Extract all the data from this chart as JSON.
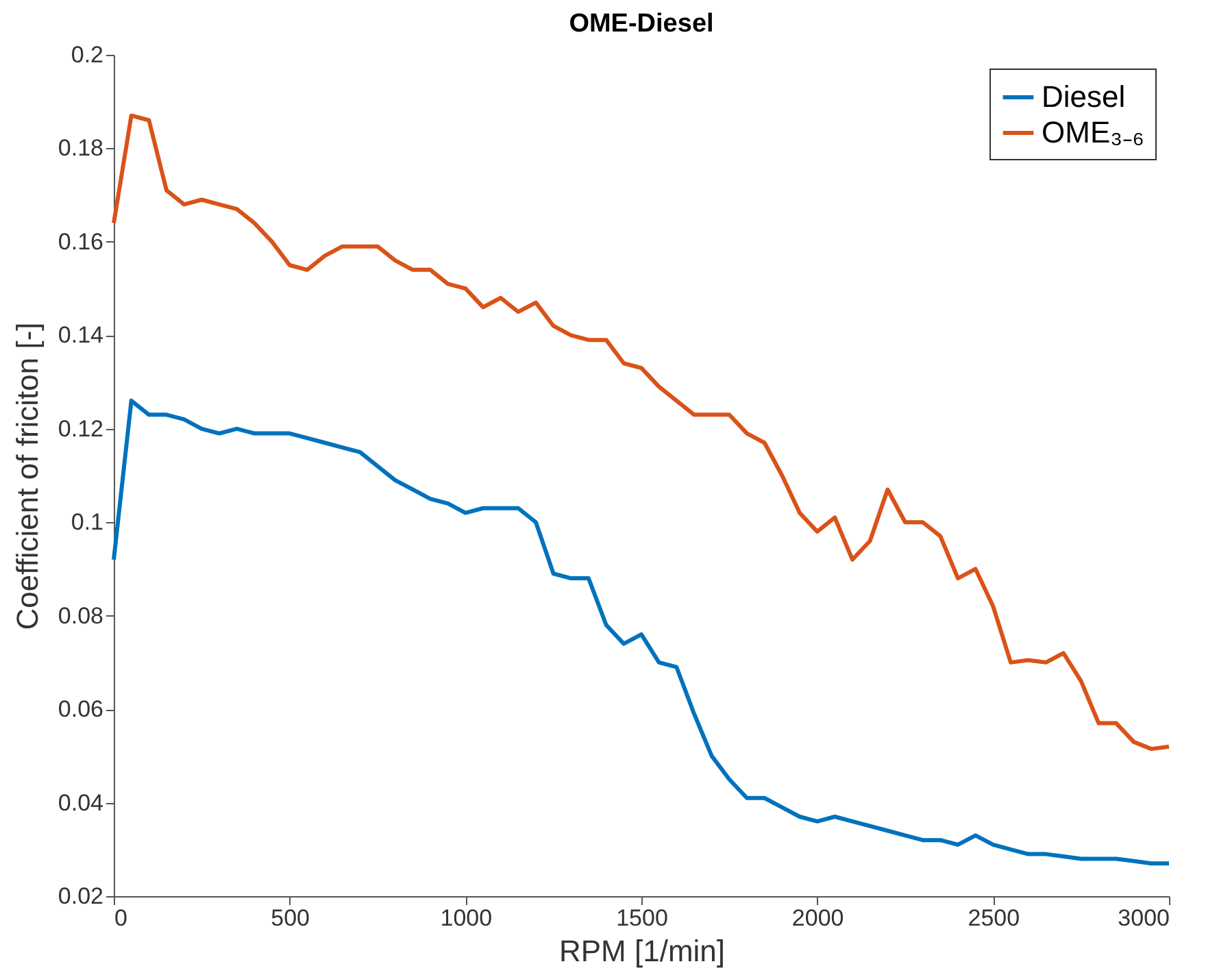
{
  "chart_data": {
    "type": "line",
    "title": "OME-Diesel",
    "xlabel": "RPM [1/min]",
    "ylabel": "Coefficient of friciton [-]",
    "x": [
      0,
      50,
      100,
      150,
      200,
      250,
      300,
      350,
      400,
      450,
      500,
      550,
      600,
      650,
      700,
      750,
      800,
      850,
      900,
      950,
      1000,
      1050,
      1100,
      1150,
      1200,
      1250,
      1300,
      1350,
      1400,
      1450,
      1500,
      1550,
      1600,
      1650,
      1700,
      1750,
      1800,
      1850,
      1900,
      1950,
      2000,
      2050,
      2100,
      2150,
      2200,
      2250,
      2300,
      2350,
      2400,
      2450,
      2500,
      2550,
      2600,
      2650,
      2700,
      2750,
      2800,
      2850,
      2900,
      2950,
      3000
    ],
    "series": [
      {
        "name": "Diesel",
        "color": "#0072bd",
        "values": [
          0.092,
          0.126,
          0.123,
          0.123,
          0.122,
          0.12,
          0.119,
          0.12,
          0.119,
          0.119,
          0.119,
          0.118,
          0.117,
          0.116,
          0.115,
          0.112,
          0.109,
          0.107,
          0.105,
          0.104,
          0.102,
          0.103,
          0.103,
          0.103,
          0.1,
          0.089,
          0.088,
          0.088,
          0.078,
          0.074,
          0.076,
          0.07,
          0.069,
          0.059,
          0.05,
          0.045,
          0.041,
          0.041,
          0.039,
          0.037,
          0.036,
          0.037,
          0.036,
          0.035,
          0.034,
          0.033,
          0.032,
          0.032,
          0.031,
          0.033,
          0.031,
          0.03,
          0.029,
          0.029,
          0.0285,
          0.028,
          0.028,
          0.028,
          0.0275,
          0.027,
          0.027
        ]
      },
      {
        "name": "OME₃₋₆",
        "color": "#d95319",
        "values": [
          0.164,
          0.187,
          0.186,
          0.171,
          0.168,
          0.169,
          0.168,
          0.167,
          0.164,
          0.16,
          0.155,
          0.154,
          0.157,
          0.159,
          0.159,
          0.159,
          0.156,
          0.154,
          0.154,
          0.151,
          0.15,
          0.146,
          0.148,
          0.145,
          0.147,
          0.142,
          0.14,
          0.139,
          0.139,
          0.134,
          0.133,
          0.129,
          0.126,
          0.123,
          0.123,
          0.123,
          0.119,
          0.117,
          0.11,
          0.102,
          0.098,
          0.101,
          0.092,
          0.096,
          0.107,
          0.1,
          0.1,
          0.097,
          0.088,
          0.09,
          0.082,
          0.07,
          0.0705,
          0.07,
          0.072,
          0.066,
          0.057,
          0.057,
          0.053,
          0.0515,
          0.052
        ]
      }
    ],
    "xlim": [
      0,
      3000
    ],
    "xticks": [
      0,
      500,
      1000,
      1500,
      2000,
      2500,
      3000
    ],
    "ylim": [
      0.02,
      0.2
    ],
    "yticks": [
      0.02,
      0.04,
      0.06,
      0.08,
      0.1,
      0.12,
      0.14,
      0.16,
      0.18,
      0.2
    ],
    "grid": false,
    "legend": "top right",
    "line_style": "solid",
    "marker": "none"
  }
}
